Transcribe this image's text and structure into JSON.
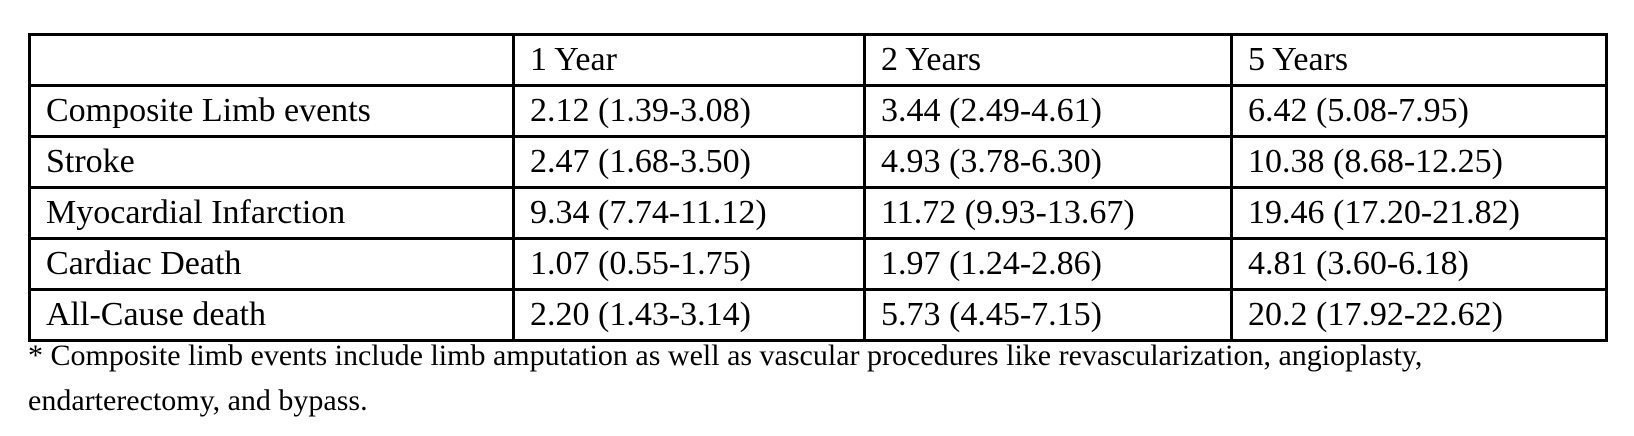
{
  "table": {
    "columns": [
      "",
      "1 Year",
      "2 Years",
      "5 Years"
    ],
    "rows": [
      {
        "label": "Composite Limb events",
        "values": [
          "2.12 (1.39-3.08)",
          "3.44 (2.49-4.61)",
          "6.42 (5.08-7.95)"
        ]
      },
      {
        "label": "Stroke",
        "values": [
          "2.47 (1.68-3.50)",
          "4.93 (3.78-6.30)",
          "10.38 (8.68-12.25)"
        ]
      },
      {
        "label": "Myocardial Infarction",
        "values": [
          "9.34 (7.74-11.12)",
          "11.72 (9.93-13.67)",
          "19.46 (17.20-21.82)"
        ]
      },
      {
        "label": "Cardiac Death",
        "values": [
          "1.07 (0.55-1.75)",
          "1.97 (1.24-2.86)",
          "4.81 (3.60-6.18)"
        ]
      },
      {
        "label": "All-Cause death",
        "values": [
          "2.20 (1.43-3.14)",
          "5.73 (4.45-7.15)",
          "20.2 (17.92-22.62)"
        ]
      }
    ]
  },
  "footnote": {
    "lines": [
      "* Composite limb events include limb amputation as well as vascular procedures like revascularization, angioplasty,",
      "endarterectomy, and bypass."
    ]
  }
}
